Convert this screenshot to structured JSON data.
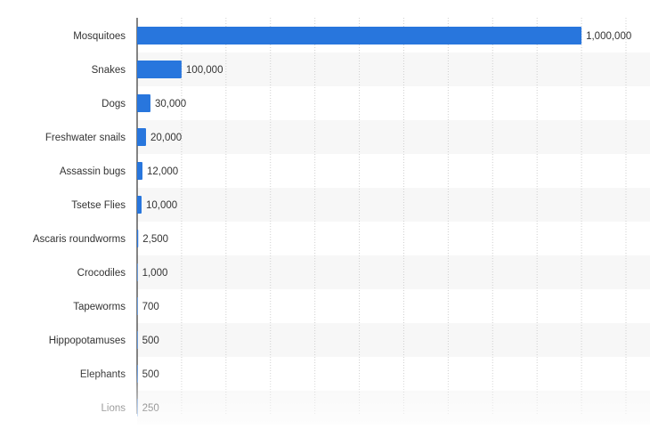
{
  "chart_data": {
    "type": "bar",
    "orientation": "horizontal",
    "categories": [
      "Mosquitoes",
      "Snakes",
      "Dogs",
      "Freshwater snails",
      "Assassin bugs",
      "Tsetse Flies",
      "Ascaris roundworms",
      "Crocodiles",
      "Tapeworms",
      "Hippopotamuses",
      "Elephants",
      "Lions"
    ],
    "values": [
      1000000,
      100000,
      30000,
      20000,
      12000,
      10000,
      2500,
      1000,
      700,
      500,
      500,
      250
    ],
    "value_labels": [
      "1,000,000",
      "100,000",
      "30,000",
      "20,000",
      "12,000",
      "10,000",
      "2,500",
      "1,000",
      "700",
      "500",
      "500",
      "250"
    ],
    "title": "",
    "xlabel": "",
    "ylabel": "",
    "xlim": [
      0,
      1100000
    ],
    "grid": true,
    "bar_color": "#2876dd",
    "stripe_color": "#f7f7f7"
  }
}
